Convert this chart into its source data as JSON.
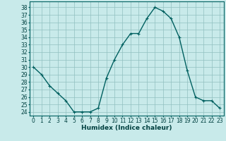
{
  "x": [
    0,
    1,
    2,
    3,
    4,
    5,
    6,
    7,
    8,
    9,
    10,
    11,
    12,
    13,
    14,
    15,
    16,
    17,
    18,
    19,
    20,
    21,
    22,
    23
  ],
  "y": [
    30,
    29,
    27.5,
    26.5,
    25.5,
    24,
    24,
    24,
    24.5,
    28.5,
    31,
    33,
    34.5,
    34.5,
    36.5,
    38,
    37.5,
    36.5,
    34,
    29.5,
    26,
    25.5,
    25.5,
    24.5
  ],
  "line_color": "#006060",
  "marker_color": "#006060",
  "bg_color": "#c8eaea",
  "grid_color": "#90c0c0",
  "xlabel": "Humidex (Indice chaleur)",
  "xlim": [
    -0.5,
    23.5
  ],
  "ylim": [
    23.5,
    38.8
  ],
  "yticks": [
    24,
    25,
    26,
    27,
    28,
    29,
    30,
    31,
    32,
    33,
    34,
    35,
    36,
    37,
    38
  ],
  "xticks": [
    0,
    1,
    2,
    3,
    4,
    5,
    6,
    7,
    8,
    9,
    10,
    11,
    12,
    13,
    14,
    15,
    16,
    17,
    18,
    19,
    20,
    21,
    22,
    23
  ],
  "tick_fontsize": 5.5,
  "label_fontsize": 6.5,
  "marker_size": 2.5,
  "line_width": 1.0
}
